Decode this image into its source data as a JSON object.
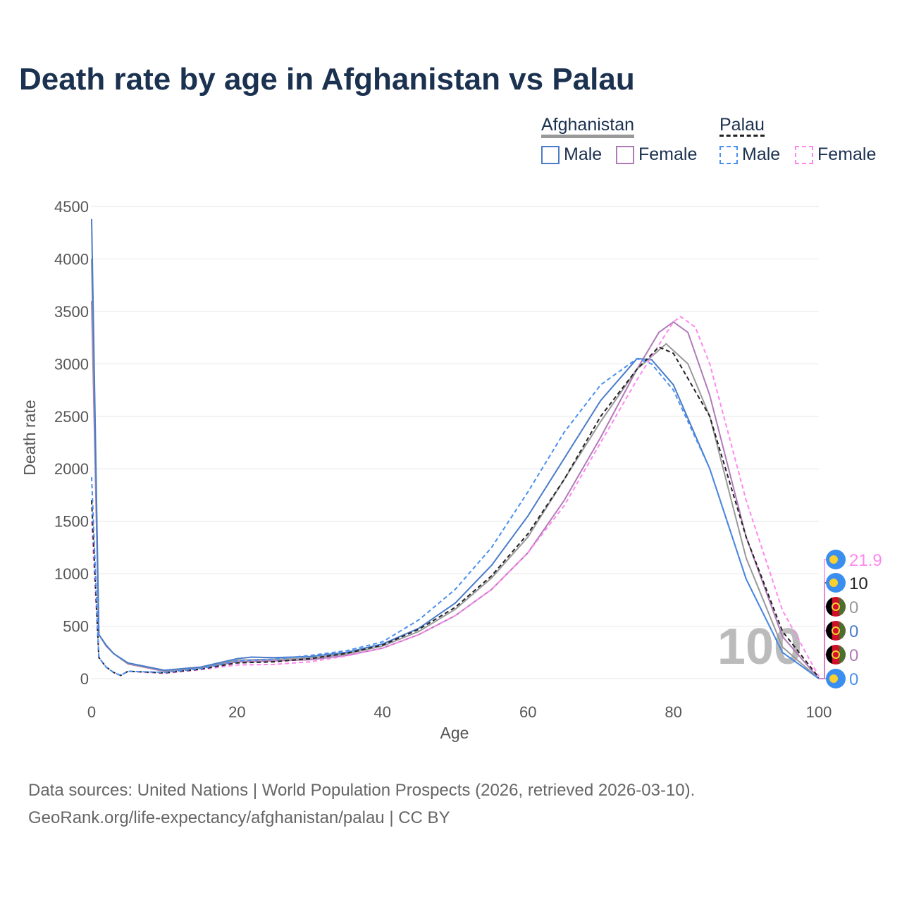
{
  "title": "Death rate by age in Afghanistan vs Palau",
  "legend": {
    "groups": [
      {
        "name": "Afghanistan",
        "items": [
          "Male",
          "Female"
        ]
      },
      {
        "name": "Palau",
        "items": [
          "Male",
          "Female"
        ]
      }
    ]
  },
  "source_line1": "Data sources: United Nations | World Population Prospects (2026, retrieved 2026-03-10).",
  "source_line2": "GeoRank.org/life-expectancy/afghanistan/palau | CC BY",
  "watermark": "100",
  "chart_data": {
    "type": "line",
    "xlabel": "Age",
    "ylabel": "Death rate",
    "xlim": [
      0,
      100
    ],
    "ylim": [
      0,
      4500
    ],
    "xticks": [
      0,
      20,
      40,
      60,
      80,
      100
    ],
    "yticks": [
      0,
      500,
      1000,
      1500,
      2000,
      2500,
      3000,
      3500,
      4000,
      4500
    ],
    "series": [
      {
        "name": "Afghanistan Female",
        "color": "#b07ab8",
        "dash": false,
        "end_label": "0",
        "flag": "afghanistan",
        "x": [
          0,
          1,
          2,
          3,
          5,
          10,
          15,
          20,
          25,
          30,
          35,
          40,
          45,
          50,
          55,
          60,
          65,
          70,
          75,
          78,
          80,
          82,
          85,
          90,
          95,
          100
        ],
        "y": [
          3600,
          420,
          310,
          240,
          140,
          70,
          100,
          160,
          170,
          180,
          220,
          290,
          420,
          600,
          850,
          1200,
          1700,
          2300,
          2950,
          3300,
          3400,
          3300,
          2700,
          1350,
          400,
          0
        ]
      },
      {
        "name": "Afghanistan Total",
        "color": "#999999",
        "dash": false,
        "end_label": "0",
        "flag": "afghanistan",
        "x": [
          0,
          1,
          2,
          3,
          5,
          10,
          15,
          20,
          25,
          30,
          35,
          40,
          45,
          50,
          55,
          60,
          65,
          70,
          75,
          79,
          82,
          85,
          90,
          95,
          100
        ],
        "y": [
          4000,
          420,
          315,
          240,
          145,
          75,
          105,
          175,
          185,
          195,
          235,
          310,
          450,
          660,
          960,
          1350,
          1900,
          2450,
          2950,
          3190,
          3000,
          2500,
          1150,
          300,
          0
        ]
      },
      {
        "name": "Afghanistan Male",
        "color": "#4a7cc9",
        "dash": false,
        "end_label": "0",
        "flag": "afghanistan",
        "x": [
          0,
          1,
          2,
          3,
          5,
          10,
          15,
          20,
          22,
          25,
          30,
          35,
          40,
          45,
          50,
          55,
          60,
          65,
          70,
          75,
          77,
          80,
          85,
          90,
          95,
          100
        ],
        "y": [
          4380,
          420,
          320,
          240,
          150,
          80,
          110,
          190,
          205,
          200,
          210,
          250,
          330,
          480,
          720,
          1080,
          1550,
          2100,
          2650,
          3050,
          3040,
          2800,
          2000,
          950,
          250,
          0
        ]
      },
      {
        "name": "Palau Female",
        "color": "#ff88ee",
        "dash": true,
        "end_label": "21.9",
        "flag": "palau",
        "x": [
          0,
          1,
          2,
          3,
          4,
          5,
          10,
          15,
          20,
          25,
          30,
          35,
          40,
          45,
          50,
          55,
          60,
          65,
          70,
          75,
          80,
          81,
          83,
          85,
          90,
          95,
          100
        ],
        "y": [
          1500,
          200,
          110,
          60,
          30,
          70,
          50,
          85,
          130,
          135,
          160,
          215,
          290,
          420,
          600,
          850,
          1200,
          1650,
          2250,
          2850,
          3400,
          3450,
          3350,
          3000,
          1700,
          650,
          22
        ]
      },
      {
        "name": "Palau Total",
        "color": "#222222",
        "dash": true,
        "end_label": "10",
        "flag": "palau",
        "x": [
          0,
          1,
          2,
          3,
          4,
          5,
          10,
          15,
          20,
          25,
          30,
          35,
          40,
          45,
          50,
          55,
          60,
          65,
          70,
          75,
          78,
          80,
          85,
          90,
          95,
          100
        ],
        "y": [
          1700,
          200,
          110,
          60,
          30,
          70,
          55,
          90,
          150,
          160,
          190,
          240,
          320,
          470,
          680,
          980,
          1380,
          1900,
          2500,
          2950,
          3160,
          3100,
          2500,
          1350,
          450,
          10
        ]
      },
      {
        "name": "Palau Male",
        "color": "#4a90f0",
        "dash": true,
        "end_label": "0",
        "flag": "palau",
        "x": [
          0,
          1,
          2,
          3,
          4,
          5,
          10,
          15,
          20,
          25,
          30,
          35,
          40,
          45,
          50,
          55,
          60,
          65,
          70,
          75,
          77,
          80,
          85,
          90,
          95,
          100
        ],
        "y": [
          1920,
          200,
          110,
          60,
          30,
          70,
          60,
          95,
          170,
          185,
          220,
          265,
          350,
          560,
          850,
          1250,
          1780,
          2350,
          2800,
          3050,
          3000,
          2750,
          2000,
          950,
          250,
          0
        ]
      }
    ]
  }
}
